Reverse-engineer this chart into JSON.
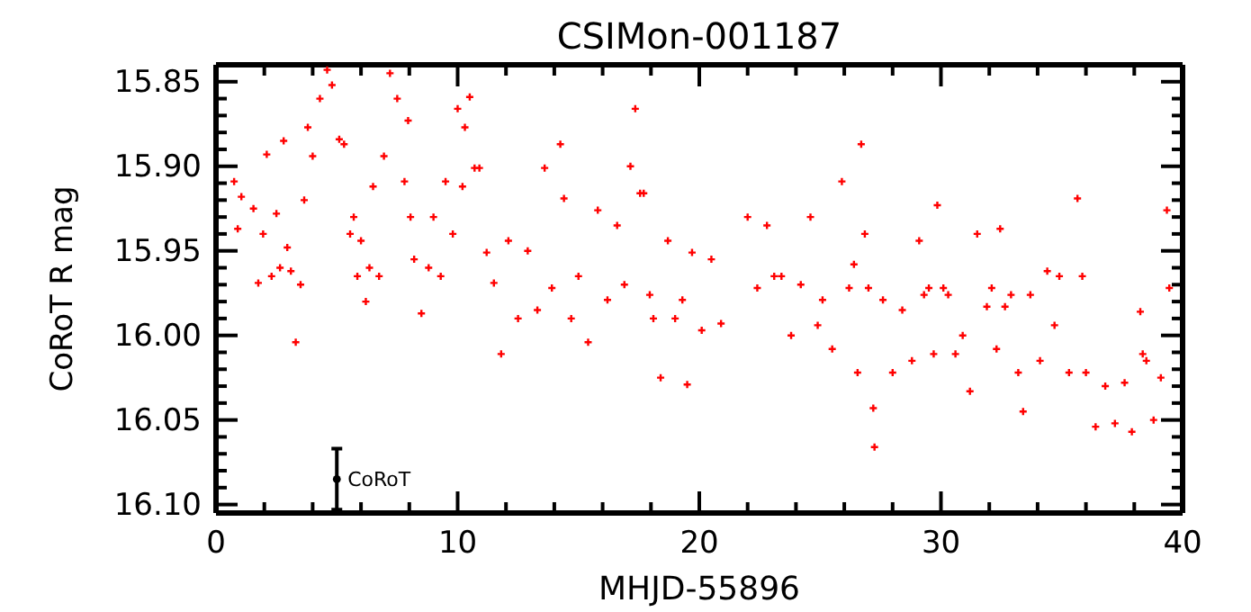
{
  "chart_data": {
    "type": "scatter",
    "title": "CSIMon-001187",
    "xlabel": "MHJD-55896",
    "ylabel": "CoRoT R mag",
    "xlim": [
      0,
      40
    ],
    "ylim": [
      16.105,
      15.84
    ],
    "xticks": [
      0,
      {
        "value": 2,
        "label": null
      },
      {
        "value": 4,
        "label": null
      },
      {
        "value": 6,
        "label": null
      },
      {
        "value": 8,
        "label": null
      },
      10,
      {
        "value": 12,
        "label": null
      },
      {
        "value": 14,
        "label": null
      },
      {
        "value": 16,
        "label": null
      },
      {
        "value": 18,
        "label": null
      },
      20,
      {
        "value": 22,
        "label": null
      },
      {
        "value": 24,
        "label": null
      },
      {
        "value": 26,
        "label": null
      },
      {
        "value": 28,
        "label": null
      },
      30,
      {
        "value": 32,
        "label": null
      },
      {
        "value": 34,
        "label": null
      },
      {
        "value": 36,
        "label": null
      },
      {
        "value": 38,
        "label": null
      },
      40
    ],
    "yticks": [
      {
        "value": 15.85,
        "label": "15.85"
      },
      {
        "value": 15.86,
        "label": null
      },
      {
        "value": 15.87,
        "label": null
      },
      {
        "value": 15.88,
        "label": null
      },
      {
        "value": 15.89,
        "label": null
      },
      {
        "value": 15.9,
        "label": "15.90"
      },
      {
        "value": 15.91,
        "label": null
      },
      {
        "value": 15.92,
        "label": null
      },
      {
        "value": 15.93,
        "label": null
      },
      {
        "value": 15.94,
        "label": null
      },
      {
        "value": 15.95,
        "label": "15.95"
      },
      {
        "value": 15.96,
        "label": null
      },
      {
        "value": 15.97,
        "label": null
      },
      {
        "value": 15.98,
        "label": null
      },
      {
        "value": 15.99,
        "label": null
      },
      {
        "value": 16.0,
        "label": "16.00"
      },
      {
        "value": 16.01,
        "label": null
      },
      {
        "value": 16.02,
        "label": null
      },
      {
        "value": 16.03,
        "label": null
      },
      {
        "value": 16.04,
        "label": null
      },
      {
        "value": 16.05,
        "label": "16.05"
      },
      {
        "value": 16.06,
        "label": null
      },
      {
        "value": 16.07,
        "label": null
      },
      {
        "value": 16.08,
        "label": null
      },
      {
        "value": 16.09,
        "label": null
      },
      {
        "value": 16.1,
        "label": "16.10"
      }
    ],
    "marker": "cross",
    "grid": false,
    "legend": false,
    "series": [
      {
        "color": "#ff0000",
        "x": [
          0.75,
          0.9,
          1.05,
          1.55,
          1.75,
          1.95,
          2.1,
          2.3,
          2.5,
          2.65,
          2.8,
          2.95,
          3.1,
          3.3,
          3.5,
          3.65,
          3.8,
          4.0,
          4.3,
          4.6,
          4.8,
          5.1,
          5.3,
          5.55,
          5.7,
          5.85,
          6.0,
          6.2,
          6.35,
          6.5,
          6.75,
          6.95,
          7.2,
          7.5,
          7.8,
          7.95,
          8.05,
          8.2,
          8.5,
          8.8,
          9.0,
          9.3,
          9.5,
          9.8,
          10.0,
          10.2,
          10.3,
          10.5,
          10.7,
          10.9,
          11.2,
          11.5,
          11.8,
          12.1,
          12.5,
          12.9,
          13.3,
          13.6,
          13.9,
          14.25,
          14.4,
          14.7,
          15.0,
          15.4,
          15.8,
          16.2,
          16.6,
          16.9,
          17.15,
          17.35,
          17.55,
          17.7,
          17.95,
          18.1,
          18.4,
          18.7,
          19.0,
          19.3,
          19.5,
          19.7,
          20.1,
          20.5,
          20.9,
          22.0,
          22.4,
          22.8,
          23.1,
          23.4,
          23.8,
          24.2,
          24.6,
          24.9,
          25.1,
          25.5,
          25.9,
          26.2,
          26.4,
          26.55,
          26.7,
          26.85,
          27.0,
          27.2,
          27.25,
          27.6,
          28.0,
          28.4,
          28.8,
          29.1,
          29.3,
          29.5,
          29.7,
          29.85,
          30.1,
          30.3,
          30.6,
          30.9,
          31.2,
          31.5,
          31.9,
          32.1,
          32.3,
          32.45,
          32.65,
          32.9,
          33.2,
          33.4,
          33.7,
          34.1,
          34.4,
          34.7,
          34.9,
          35.3,
          35.65,
          35.85,
          36.0,
          36.4,
          36.8,
          37.2,
          37.6,
          37.9,
          38.25,
          38.35,
          38.5,
          38.8,
          39.1,
          39.35,
          39.45
        ],
        "values": [
          15.909,
          15.937,
          15.918,
          15.925,
          15.969,
          15.94,
          15.893,
          15.965,
          15.928,
          15.96,
          15.885,
          15.948,
          15.962,
          16.004,
          15.97,
          15.92,
          15.877,
          15.894,
          15.86,
          15.843,
          15.852,
          15.884,
          15.887,
          15.94,
          15.93,
          15.965,
          15.944,
          15.98,
          15.96,
          15.912,
          15.965,
          15.894,
          15.845,
          15.86,
          15.909,
          15.873,
          15.93,
          15.955,
          15.987,
          15.96,
          15.93,
          15.965,
          15.909,
          15.94,
          15.866,
          15.912,
          15.877,
          15.859,
          15.901,
          15.901,
          15.951,
          15.969,
          16.011,
          15.944,
          15.99,
          15.95,
          15.985,
          15.901,
          15.972,
          15.887,
          15.919,
          15.99,
          15.965,
          16.004,
          15.926,
          15.979,
          15.935,
          15.97,
          15.9,
          15.866,
          15.916,
          15.916,
          15.976,
          15.99,
          16.025,
          15.944,
          15.99,
          15.979,
          16.029,
          15.951,
          15.997,
          15.955,
          15.993,
          15.93,
          15.972,
          15.935,
          15.965,
          15.965,
          16.0,
          15.97,
          15.93,
          15.994,
          15.979,
          16.008,
          15.909,
          15.972,
          15.958,
          16.022,
          15.887,
          15.94,
          15.972,
          16.043,
          16.066,
          15.979,
          16.022,
          15.985,
          16.015,
          15.944,
          15.976,
          15.972,
          16.011,
          15.923,
          15.972,
          15.976,
          16.011,
          16.0,
          16.033,
          15.94,
          15.983,
          15.972,
          16.008,
          15.937,
          15.983,
          15.976,
          16.022,
          16.045,
          15.976,
          16.015,
          15.962,
          15.994,
          15.965,
          16.022,
          15.919,
          15.965,
          16.022,
          16.054,
          16.03,
          16.052,
          16.028,
          16.057,
          15.986,
          16.011,
          16.015,
          16.05,
          16.025,
          15.926,
          15.972
        ]
      },
      {
        "name": "CoRoT",
        "color": "#000000",
        "marker": "circle",
        "x": [
          5
        ],
        "values": [
          16.085
        ],
        "errors": [
          0.018
        ]
      }
    ]
  }
}
